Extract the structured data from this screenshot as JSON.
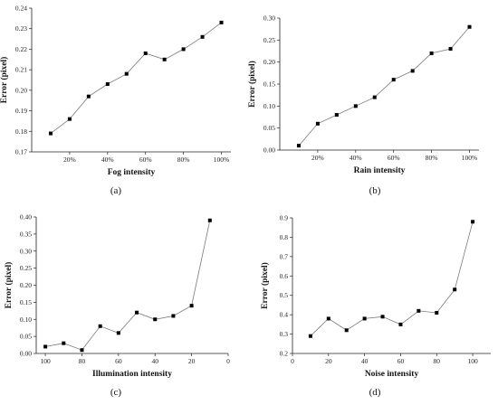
{
  "chart_data": [
    {
      "type": "line",
      "caption": "(a)",
      "xlabel": "Fog intensity",
      "ylabel": "Error (pixel)",
      "x": [
        "10%",
        "20%",
        "30%",
        "40%",
        "50%",
        "60%",
        "70%",
        "80%",
        "90%",
        "100%"
      ],
      "x_ticks": [
        "20%",
        "40%",
        "60%",
        "80%",
        "100%"
      ],
      "series": [
        {
          "values": [
            0.179,
            0.186,
            0.197,
            0.203,
            0.208,
            0.218,
            0.215,
            0.22,
            0.226,
            0.233
          ]
        }
      ],
      "ylim": [
        0.17,
        0.24
      ],
      "y_ticks": [
        "0.17",
        "0.18",
        "0.19",
        "0.20",
        "0.21",
        "0.22",
        "0.23",
        "0.24"
      ],
      "grid": false
    },
    {
      "type": "line",
      "caption": "(b)",
      "xlabel": "Rain intensity",
      "ylabel": "Error (pixel)",
      "x": [
        "10%",
        "20%",
        "30%",
        "40%",
        "50%",
        "60%",
        "70%",
        "80%",
        "90%",
        "100%"
      ],
      "x_ticks": [
        "20%",
        "40%",
        "60%",
        "80%",
        "100%"
      ],
      "series": [
        {
          "values": [
            0.01,
            0.06,
            0.08,
            0.1,
            0.12,
            0.16,
            0.18,
            0.22,
            0.23,
            0.28
          ]
        }
      ],
      "ylim": [
        0,
        0.3
      ],
      "y_ticks": [
        "0.00",
        "0.05",
        "0.10",
        "0.15",
        "0.20",
        "0.25",
        "0.30"
      ],
      "grid": false
    },
    {
      "type": "line",
      "caption": "(c)",
      "xlabel": "Illumination intensity",
      "ylabel": "Error (pixel)",
      "x": [
        100,
        90,
        80,
        70,
        60,
        50,
        40,
        30,
        20,
        10
      ],
      "xlim": [
        105,
        0
      ],
      "x_ticks": [
        "100",
        "80",
        "60",
        "40",
        "20",
        "0"
      ],
      "series": [
        {
          "values": [
            0.02,
            0.03,
            0.01,
            0.08,
            0.06,
            0.12,
            0.1,
            0.11,
            0.14,
            0.39
          ]
        }
      ],
      "ylim": [
        0,
        0.4
      ],
      "y_ticks": [
        "0.00",
        "0.05",
        "0.10",
        "0.15",
        "0.20",
        "0.25",
        "0.30",
        "0.35",
        "0.40"
      ],
      "grid": false
    },
    {
      "type": "line",
      "caption": "(d)",
      "xlabel": "Noise intensity",
      "ylabel": "Error (pixel)",
      "x": [
        10,
        20,
        30,
        40,
        50,
        60,
        70,
        80,
        90,
        100
      ],
      "xlim": [
        0,
        110
      ],
      "x_ticks": [
        "0",
        "20",
        "40",
        "60",
        "80",
        "100"
      ],
      "series": [
        {
          "values": [
            0.29,
            0.38,
            0.32,
            0.38,
            0.39,
            0.35,
            0.42,
            0.41,
            0.53,
            0.88
          ]
        }
      ],
      "ylim": [
        0.2,
        0.9
      ],
      "y_ticks": [
        "0.2",
        "0.3",
        "0.4",
        "0.5",
        "0.6",
        "0.7",
        "0.8",
        "0.9"
      ],
      "grid": false
    }
  ]
}
